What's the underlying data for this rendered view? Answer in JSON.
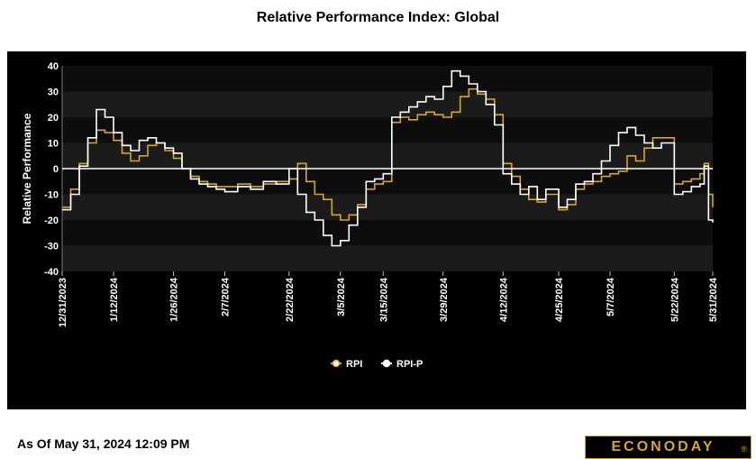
{
  "footer": {
    "as_of": "As Of May 31, 2024 12:09 PM"
  },
  "logo": {
    "text": "ECONODAY",
    "reg": "®",
    "color": "#d4a62a"
  },
  "chart_data": {
    "type": "line",
    "title": "Relative Performance Index: Global",
    "ylabel": "Relative Performance",
    "xlabel": "",
    "ylim": [
      -40,
      40
    ],
    "yticks": [
      40,
      30,
      20,
      10,
      0,
      -10,
      -20,
      -30,
      -40
    ],
    "xlim": [
      "2023-12-31",
      "2024-05-31"
    ],
    "xtick_labels": [
      "12/31/2023",
      "1/12/2024",
      "1/26/2024",
      "2/7/2024",
      "2/22/2024",
      "3/5/2024",
      "3/15/2024",
      "3/29/2024",
      "4/12/2024",
      "4/25/2024",
      "5/7/2024",
      "5/22/2024",
      "5/31/2024"
    ],
    "xtick_dates": [
      "2023-12-31",
      "2024-01-12",
      "2024-01-26",
      "2024-02-07",
      "2024-02-22",
      "2024-03-05",
      "2024-03-15",
      "2024-03-29",
      "2024-04-12",
      "2024-04-25",
      "2024-05-07",
      "2024-05-22",
      "2024-05-31"
    ],
    "grid": true,
    "zero_line": true,
    "background": "#000000",
    "legend_position": "bottom-center",
    "series": [
      {
        "name": "RPI",
        "color": "#d4a62a",
        "x": [
          "2023-12-31",
          "2024-01-02",
          "2024-01-04",
          "2024-01-06",
          "2024-01-08",
          "2024-01-10",
          "2024-01-12",
          "2024-01-14",
          "2024-01-16",
          "2024-01-18",
          "2024-01-20",
          "2024-01-22",
          "2024-01-24",
          "2024-01-26",
          "2024-01-28",
          "2024-01-30",
          "2024-02-01",
          "2024-02-03",
          "2024-02-05",
          "2024-02-07",
          "2024-02-10",
          "2024-02-13",
          "2024-02-16",
          "2024-02-19",
          "2024-02-22",
          "2024-02-24",
          "2024-02-26",
          "2024-02-28",
          "2024-03-01",
          "2024-03-03",
          "2024-03-05",
          "2024-03-07",
          "2024-03-09",
          "2024-03-11",
          "2024-03-13",
          "2024-03-15",
          "2024-03-17",
          "2024-03-19",
          "2024-03-21",
          "2024-03-23",
          "2024-03-25",
          "2024-03-27",
          "2024-03-29",
          "2024-03-31",
          "2024-04-02",
          "2024-04-04",
          "2024-04-06",
          "2024-04-08",
          "2024-04-10",
          "2024-04-12",
          "2024-04-14",
          "2024-04-16",
          "2024-04-18",
          "2024-04-20",
          "2024-04-22",
          "2024-04-25",
          "2024-04-27",
          "2024-04-29",
          "2024-05-01",
          "2024-05-03",
          "2024-05-05",
          "2024-05-07",
          "2024-05-09",
          "2024-05-11",
          "2024-05-13",
          "2024-05-15",
          "2024-05-17",
          "2024-05-19",
          "2024-05-22",
          "2024-05-24",
          "2024-05-26",
          "2024-05-28",
          "2024-05-29",
          "2024-05-30",
          "2024-05-31"
        ],
        "values": [
          -15,
          -8,
          2,
          10,
          15,
          14,
          11,
          6,
          3,
          5,
          9,
          10,
          7,
          4,
          0,
          -3,
          -5,
          -6,
          -7,
          -7,
          -6,
          -7,
          -6,
          -5,
          -4,
          2,
          -5,
          -10,
          -12,
          -18,
          -20,
          -18,
          -14,
          -8,
          -6,
          -5,
          18,
          20,
          19,
          21,
          22,
          21,
          20,
          22,
          28,
          31,
          29,
          27,
          21,
          2,
          -3,
          -8,
          -12,
          -13,
          -10,
          -16,
          -14,
          -8,
          -6,
          -5,
          -3,
          -2,
          -1,
          5,
          3,
          8,
          12,
          12,
          -6,
          -5,
          -4,
          -2,
          2,
          -10,
          -15
        ]
      },
      {
        "name": "RPI-P",
        "color": "#ffffff",
        "x": [
          "2023-12-31",
          "2024-01-02",
          "2024-01-04",
          "2024-01-06",
          "2024-01-08",
          "2024-01-10",
          "2024-01-12",
          "2024-01-14",
          "2024-01-16",
          "2024-01-18",
          "2024-01-20",
          "2024-01-22",
          "2024-01-24",
          "2024-01-26",
          "2024-01-28",
          "2024-01-30",
          "2024-02-01",
          "2024-02-03",
          "2024-02-05",
          "2024-02-07",
          "2024-02-10",
          "2024-02-13",
          "2024-02-16",
          "2024-02-19",
          "2024-02-22",
          "2024-02-24",
          "2024-02-26",
          "2024-02-28",
          "2024-03-01",
          "2024-03-03",
          "2024-03-05",
          "2024-03-07",
          "2024-03-09",
          "2024-03-11",
          "2024-03-13",
          "2024-03-15",
          "2024-03-17",
          "2024-03-19",
          "2024-03-21",
          "2024-03-23",
          "2024-03-25",
          "2024-03-27",
          "2024-03-29",
          "2024-03-31",
          "2024-04-02",
          "2024-04-04",
          "2024-04-06",
          "2024-04-08",
          "2024-04-10",
          "2024-04-12",
          "2024-04-14",
          "2024-04-16",
          "2024-04-18",
          "2024-04-20",
          "2024-04-22",
          "2024-04-25",
          "2024-04-27",
          "2024-04-29",
          "2024-05-01",
          "2024-05-03",
          "2024-05-05",
          "2024-05-07",
          "2024-05-09",
          "2024-05-11",
          "2024-05-13",
          "2024-05-15",
          "2024-05-17",
          "2024-05-19",
          "2024-05-22",
          "2024-05-24",
          "2024-05-26",
          "2024-05-28",
          "2024-05-29",
          "2024-05-30",
          "2024-05-31"
        ],
        "values": [
          -16,
          -10,
          1,
          12,
          23,
          20,
          14,
          9,
          7,
          11,
          12,
          10,
          8,
          6,
          0,
          -4,
          -6,
          -7,
          -8,
          -9,
          -7,
          -8,
          -5,
          -6,
          0,
          -10,
          -17,
          -20,
          -26,
          -30,
          -28,
          -22,
          -15,
          -5,
          -4,
          -2,
          20,
          22,
          24,
          26,
          28,
          27,
          32,
          38,
          36,
          33,
          30,
          25,
          17,
          -2,
          -6,
          -10,
          -7,
          -12,
          -8,
          -15,
          -12,
          -6,
          -5,
          -2,
          3,
          9,
          14,
          16,
          13,
          10,
          8,
          10,
          -10,
          -9,
          -7,
          -6,
          1,
          -20,
          -21
        ]
      }
    ]
  }
}
